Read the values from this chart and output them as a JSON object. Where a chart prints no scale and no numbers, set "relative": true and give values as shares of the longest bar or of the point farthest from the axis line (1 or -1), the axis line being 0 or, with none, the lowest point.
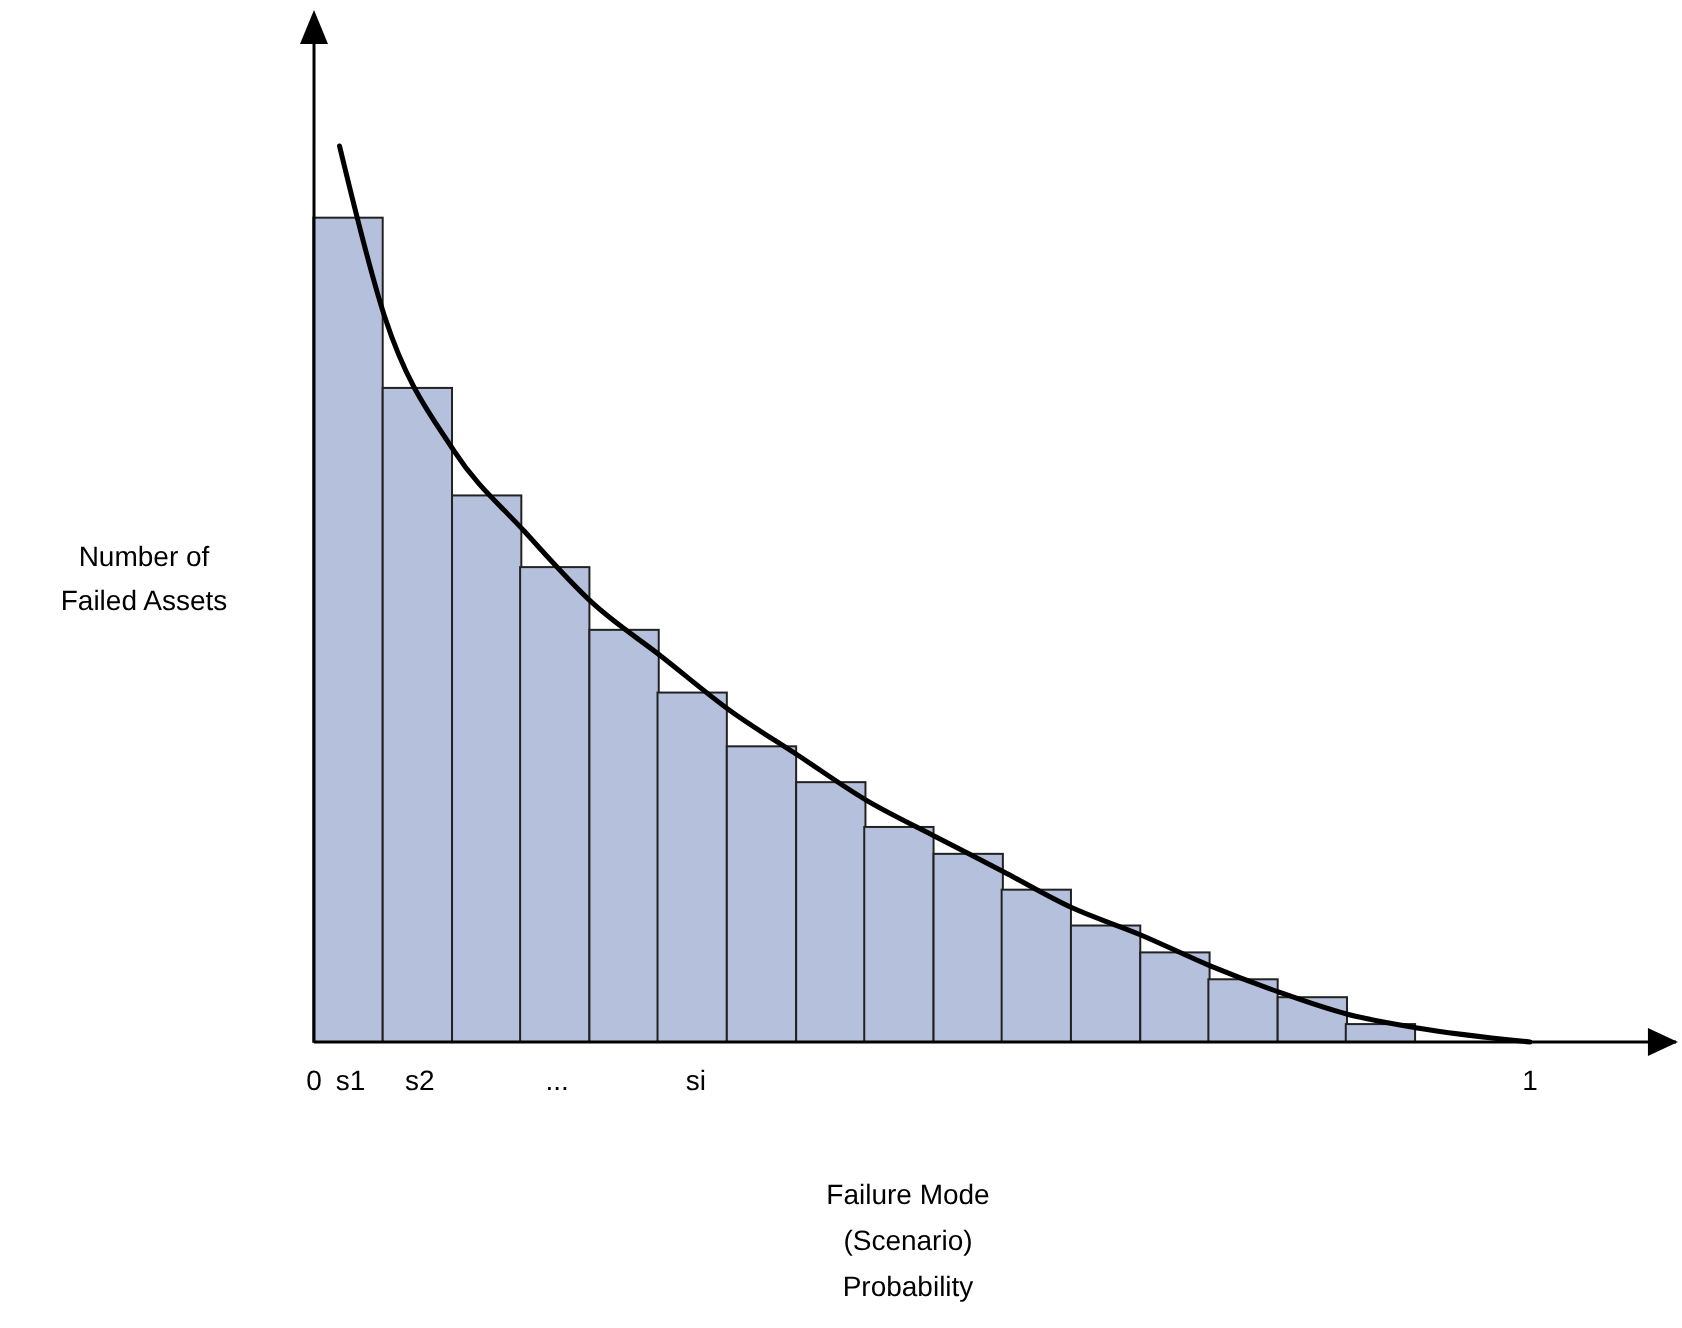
{
  "chart_data": {
    "type": "bar",
    "relative": true,
    "xlabel": "Failure Mode\n(Scenario)\nProbability",
    "ylabel": "Number of\nFailed Assets",
    "xlim": [
      0,
      1.12
    ],
    "xticks": [
      0,
      {
        "value": 0.03,
        "label": "s1"
      },
      {
        "value": 0.087,
        "label": "s2"
      },
      {
        "value": 0.2,
        "label": "..."
      },
      {
        "value": 0.314,
        "label": "si"
      },
      1
    ],
    "grid": false,
    "legend": false,
    "series": [
      {
        "color": "#b4c0dc",
        "x": [
          0.028,
          0.085,
          0.142,
          0.198,
          0.255,
          0.311,
          0.368,
          0.425,
          0.481,
          0.538,
          0.594,
          0.651,
          0.708,
          0.764,
          0.821,
          0.877
        ],
        "values": [
          0.92,
          0.73,
          0.61,
          0.53,
          0.46,
          0.39,
          0.33,
          0.29,
          0.24,
          0.21,
          0.17,
          0.13,
          0.1,
          0.07,
          0.05,
          0.02
        ]
      },
      {
        "type": "line",
        "color": "#000000",
        "marker": "none",
        "line_style": "solid",
        "x": [
          0.021,
          0.058,
          0.115,
          0.173,
          0.229,
          0.286,
          0.342,
          0.398,
          0.454,
          0.51,
          0.567,
          0.623,
          0.679,
          0.737,
          0.793,
          0.85,
          0.906,
          1.0
        ],
        "values": [
          1.0,
          0.81,
          0.66,
          0.57,
          0.49,
          0.43,
          0.37,
          0.32,
          0.27,
          0.23,
          0.19,
          0.15,
          0.12,
          0.085,
          0.056,
          0.031,
          0.016,
          0
        ]
      }
    ]
  }
}
